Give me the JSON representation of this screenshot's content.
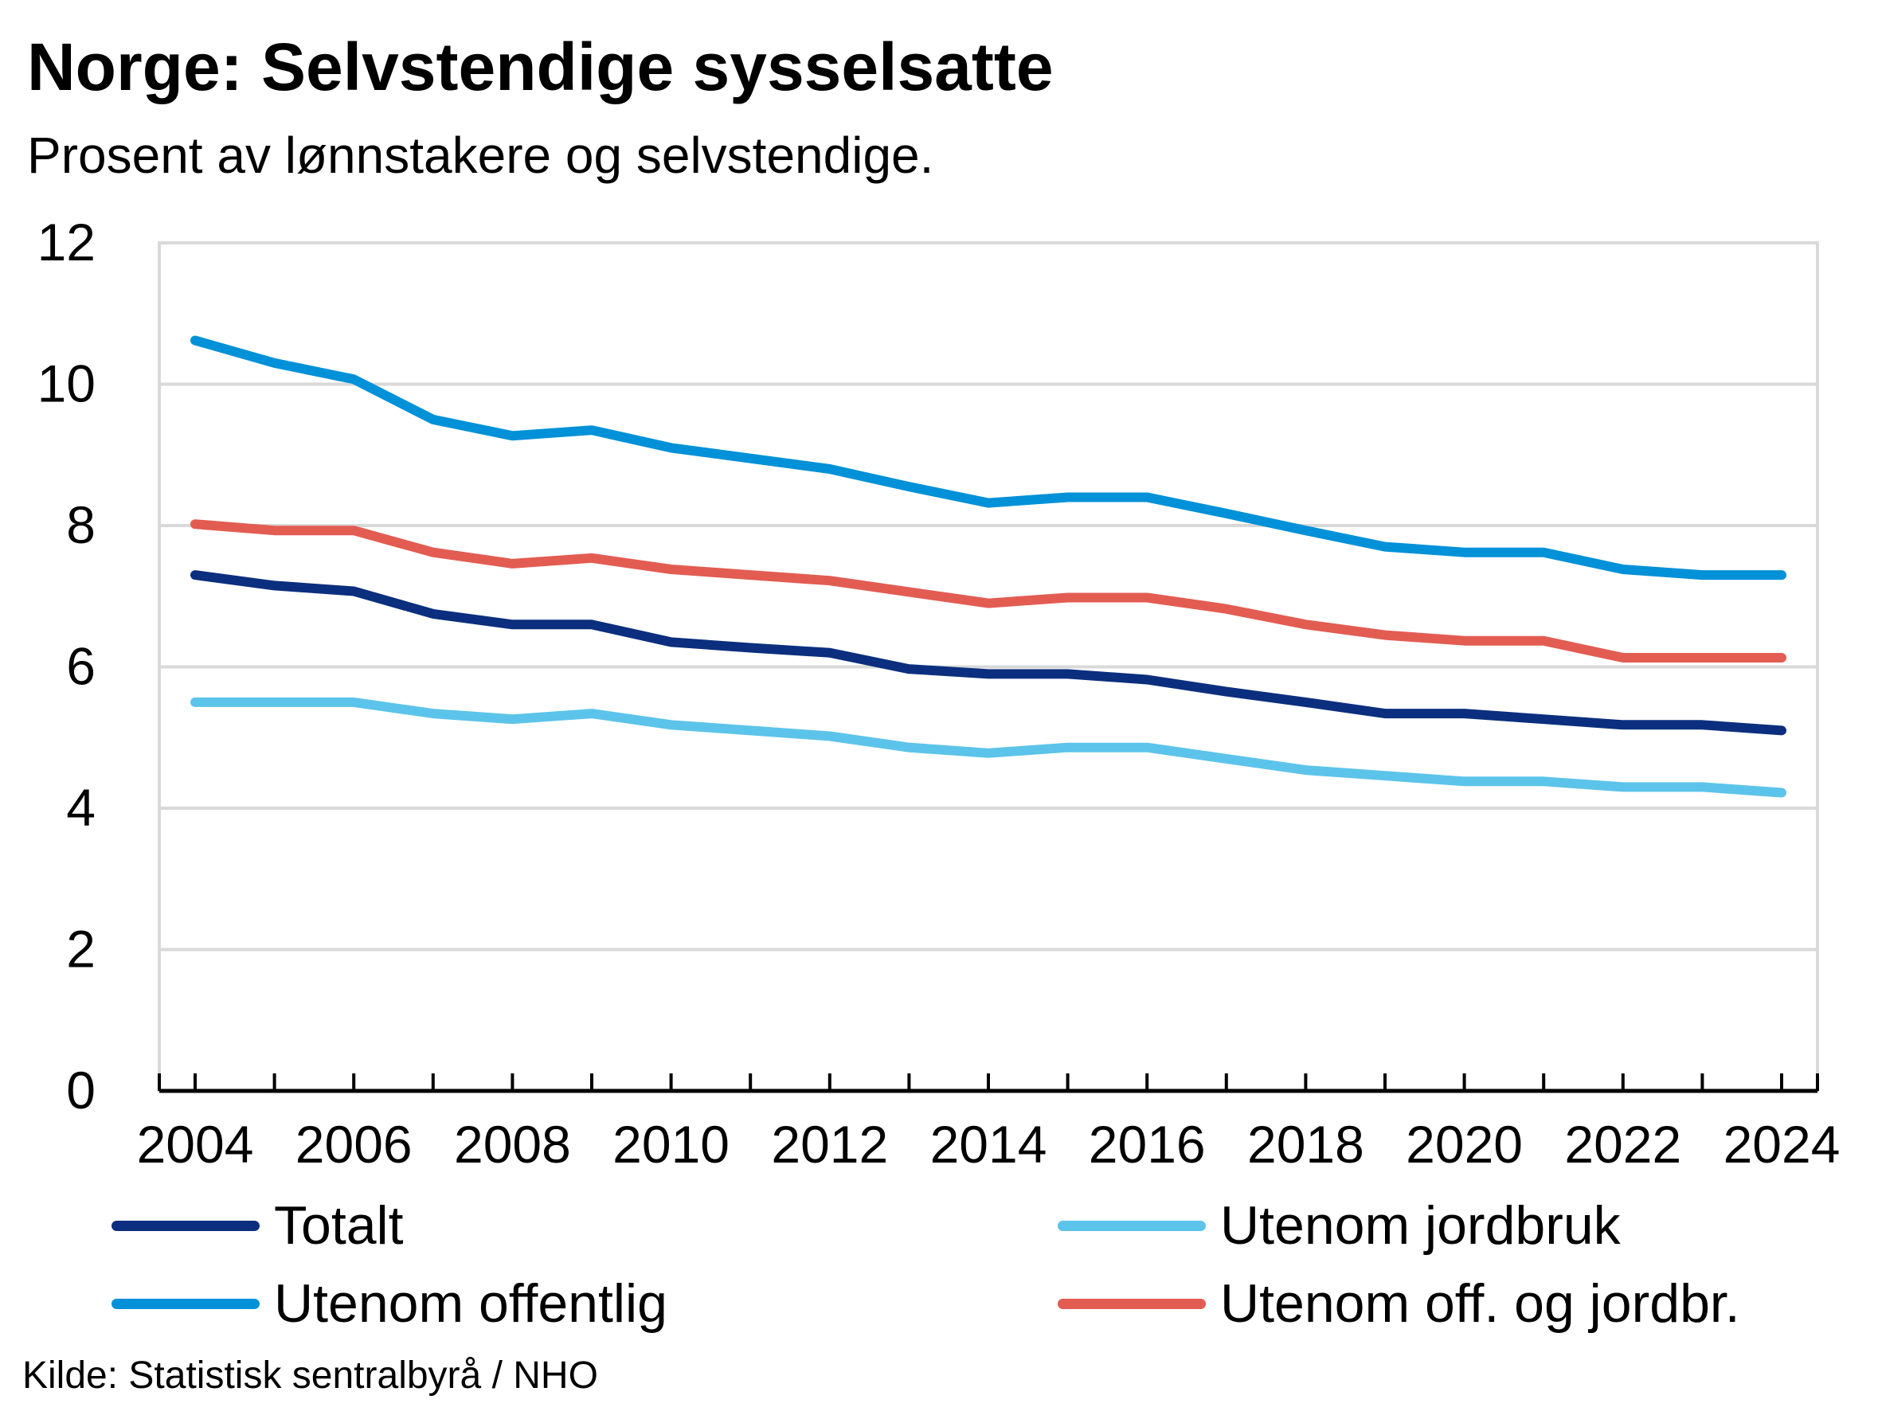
{
  "title": "Norge:  Selvstendige sysselsatte",
  "subtitle": "Prosent av lønnstakere og selvstendige.",
  "source": "Kilde: Statistisk sentralbyrå / NHO",
  "chart_data": {
    "type": "line",
    "x": [
      2004,
      2005,
      2006,
      2007,
      2008,
      2009,
      2010,
      2011,
      2012,
      2013,
      2014,
      2015,
      2016,
      2017,
      2018,
      2019,
      2020,
      2021,
      2022,
      2023,
      2024
    ],
    "x_tick_labels": [
      "2004",
      "2006",
      "2008",
      "2010",
      "2012",
      "2014",
      "2016",
      "2018",
      "2020",
      "2022",
      "2024"
    ],
    "y_tick_labels": [
      "0",
      "2",
      "4",
      "6",
      "8",
      "10",
      "12"
    ],
    "ylim": [
      0,
      12
    ],
    "grid": "horizontal",
    "legend_placement": "bottom",
    "series": [
      {
        "name": "Totalt",
        "color": "#0b2f7e",
        "values": [
          7.3,
          7.15,
          7.07,
          6.75,
          6.6,
          6.6,
          6.35,
          6.27,
          6.2,
          5.97,
          5.9,
          5.9,
          5.82,
          5.65,
          5.5,
          5.34,
          5.34,
          5.26,
          5.18,
          5.18,
          5.1
        ]
      },
      {
        "name": "Utenom jordbruk",
        "color": "#5cc4ea",
        "values": [
          5.5,
          5.5,
          5.5,
          5.34,
          5.26,
          5.34,
          5.18,
          5.1,
          5.02,
          4.86,
          4.78,
          4.86,
          4.86,
          4.7,
          4.54,
          4.46,
          4.38,
          4.38,
          4.3,
          4.3,
          4.22
        ]
      },
      {
        "name": "Utenom offentlig",
        "color": "#0091d8",
        "values": [
          10.62,
          10.3,
          10.07,
          9.5,
          9.27,
          9.35,
          9.1,
          8.95,
          8.8,
          8.55,
          8.32,
          8.4,
          8.4,
          8.17,
          7.93,
          7.7,
          7.62,
          7.62,
          7.38,
          7.3,
          7.3
        ]
      },
      {
        "name": "Utenom off. og jordbr.",
        "color": "#e35c52",
        "values": [
          8.02,
          7.93,
          7.93,
          7.62,
          7.46,
          7.54,
          7.38,
          7.3,
          7.22,
          7.06,
          6.9,
          6.98,
          6.98,
          6.82,
          6.6,
          6.45,
          6.37,
          6.37,
          6.13,
          6.13,
          6.13
        ]
      }
    ]
  }
}
